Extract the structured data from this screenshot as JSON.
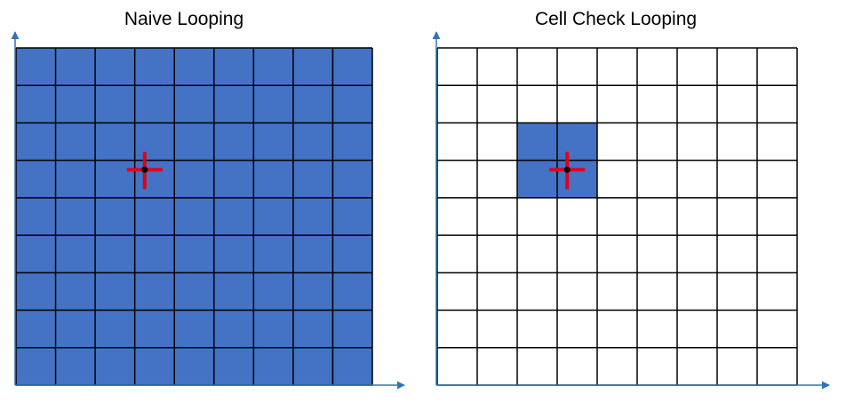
{
  "colors": {
    "cell_fill": "#4472C4",
    "grid_line": "#000000",
    "axis": "#2E75B6",
    "cross": "#E3001B",
    "dot": "#000000",
    "background": "#FFFFFF"
  },
  "panels": [
    {
      "title": "Naive Looping",
      "columns": 9,
      "rows": 9,
      "highlight": "all",
      "highlighted_cells": [],
      "query_point": {
        "col": 3.25,
        "row": 3.25
      }
    },
    {
      "title": "Cell Check Looping",
      "columns": 9,
      "rows": 9,
      "highlight": "cells",
      "highlighted_cells": [
        [
          2,
          2
        ],
        [
          3,
          2
        ],
        [
          2,
          3
        ],
        [
          3,
          3
        ]
      ],
      "query_point": {
        "col": 3.25,
        "row": 3.25
      }
    }
  ]
}
